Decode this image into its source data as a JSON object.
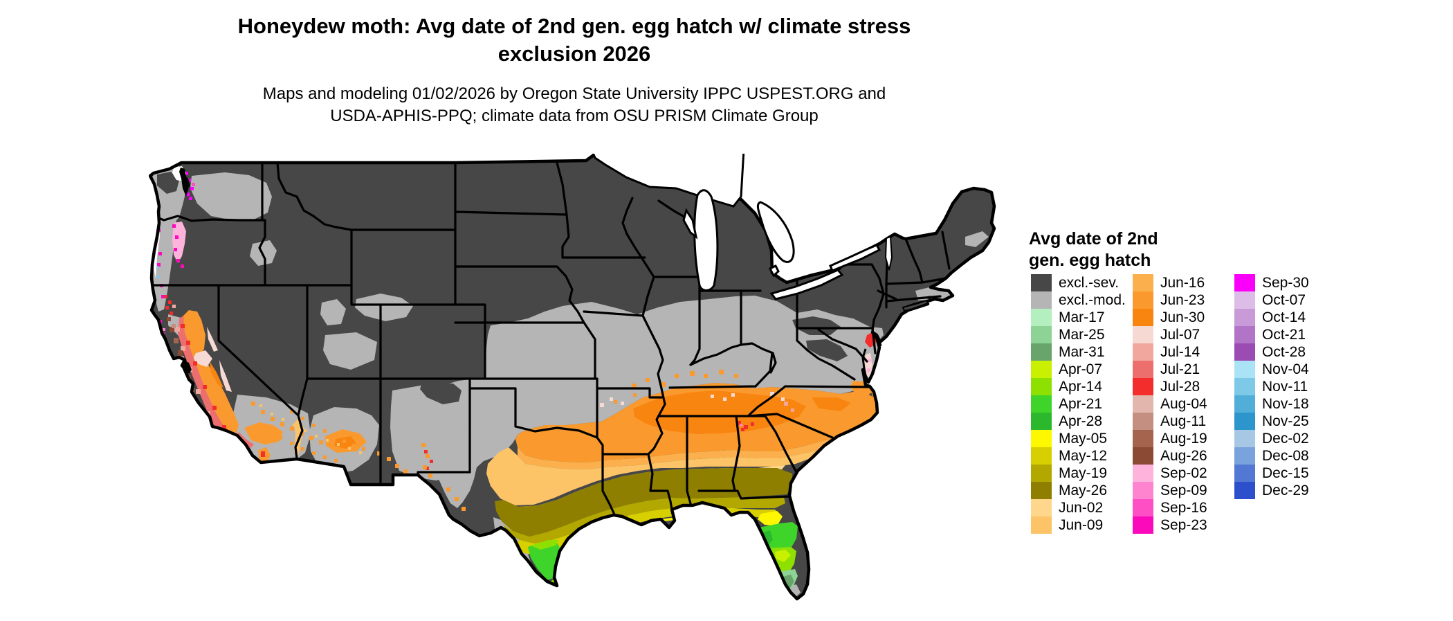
{
  "title": {
    "line1": "Honeydew moth: Avg date of 2nd gen. egg hatch w/ climate stress",
    "line2": "exclusion 2026"
  },
  "subtitle": {
    "line1": "Maps and modeling 01/02/2026 by Oregon State University IPPC USPEST.ORG and",
    "line2": "USDA-APHIS-PPQ; climate data from OSU PRISM Climate Group"
  },
  "legend": {
    "title_line1": "Avg date of 2nd",
    "title_line2": "gen. egg hatch",
    "columns": [
      [
        {
          "label": "excl.-sev.",
          "color": "#474747"
        },
        {
          "label": "excl.-mod.",
          "color": "#b5b5b5"
        },
        {
          "label": "Mar-17",
          "color": "#b4f0bf"
        },
        {
          "label": "Mar-25",
          "color": "#8ed396"
        },
        {
          "label": "Mar-31",
          "color": "#69a46d"
        },
        {
          "label": "Apr-07",
          "color": "#c9f000"
        },
        {
          "label": "Apr-14",
          "color": "#8ee000"
        },
        {
          "label": "Apr-21",
          "color": "#3fd42a"
        },
        {
          "label": "Apr-28",
          "color": "#2cb82c"
        },
        {
          "label": "May-05",
          "color": "#fdf800"
        },
        {
          "label": "May-12",
          "color": "#d8cf00"
        },
        {
          "label": "May-19",
          "color": "#b3a800"
        },
        {
          "label": "May-26",
          "color": "#8e7f00"
        },
        {
          "label": "Jun-02",
          "color": "#fed78d"
        },
        {
          "label": "Jun-09",
          "color": "#fcc367"
        }
      ],
      [
        {
          "label": "Jun-16",
          "color": "#fbb04d"
        },
        {
          "label": "Jun-23",
          "color": "#fa9a2e"
        },
        {
          "label": "Jun-30",
          "color": "#f98511"
        },
        {
          "label": "Jul-07",
          "color": "#f6d9d2"
        },
        {
          "label": "Jul-14",
          "color": "#f1a69e"
        },
        {
          "label": "Jul-21",
          "color": "#ed6f6d"
        },
        {
          "label": "Jul-28",
          "color": "#f32d2b"
        },
        {
          "label": "Aug-04",
          "color": "#e2b6ac"
        },
        {
          "label": "Aug-11",
          "color": "#c48e81"
        },
        {
          "label": "Aug-19",
          "color": "#a5644e"
        },
        {
          "label": "Aug-26",
          "color": "#8a4a33"
        },
        {
          "label": "Sep-02",
          "color": "#feb3dc"
        },
        {
          "label": "Sep-09",
          "color": "#fe84d0"
        },
        {
          "label": "Sep-16",
          "color": "#fe4fc5"
        },
        {
          "label": "Sep-23",
          "color": "#fb0abb"
        }
      ],
      [
        {
          "label": "Sep-30",
          "color": "#fa00fa"
        },
        {
          "label": "Oct-07",
          "color": "#dcbde7"
        },
        {
          "label": "Oct-14",
          "color": "#c99ad8"
        },
        {
          "label": "Oct-21",
          "color": "#b274c6"
        },
        {
          "label": "Oct-28",
          "color": "#9b4cb3"
        },
        {
          "label": "Nov-04",
          "color": "#aae3f5"
        },
        {
          "label": "Nov-11",
          "color": "#7ec9e8"
        },
        {
          "label": "Nov-18",
          "color": "#51aed9"
        },
        {
          "label": "Nov-25",
          "color": "#2b95cc"
        },
        {
          "label": "Dec-02",
          "color": "#a6c8e5"
        },
        {
          "label": "Dec-08",
          "color": "#7aa2dc"
        },
        {
          "label": "Dec-15",
          "color": "#5378d4"
        },
        {
          "label": "Dec-29",
          "color": "#2c4fcb"
        }
      ]
    ]
  }
}
